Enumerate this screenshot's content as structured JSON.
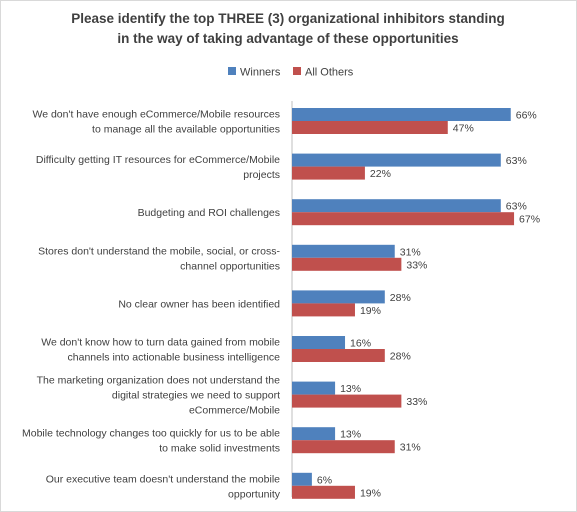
{
  "chart_data": {
    "type": "bar",
    "orientation": "horizontal",
    "title": "Please identify the top THREE (3) organizational inhibitors  standing in the way of taking advantage of these opportunities",
    "title_lines": [
      "Please identify the top THREE (3) organizational inhibitors  standing",
      "in the way of taking advantage of these opportunities"
    ],
    "legend_position": "top",
    "grid": false,
    "xlim": [
      0,
      70
    ],
    "categories": [
      [
        "We don't have enough eCommerce/Mobile resources",
        "to manage all the available opportunities"
      ],
      [
        "Difficulty getting IT resources for eCommerce/Mobile",
        "projects"
      ],
      [
        "Budgeting and ROI challenges"
      ],
      [
        "Stores don't understand the mobile, social, or cross-",
        "channel opportunities"
      ],
      [
        "No clear owner has been identified"
      ],
      [
        "We don't know how to turn data gained from mobile",
        "channels into actionable business intelligence"
      ],
      [
        "The marketing organization does not understand the",
        "digital strategies we need to support",
        "eCommerce/Mobile"
      ],
      [
        "Mobile technology changes too quickly for us to be able",
        "to make solid investments"
      ],
      [
        "Our executive team doesn't understand the mobile",
        "opportunity"
      ]
    ],
    "series": [
      {
        "name": "Winners",
        "color": "#4f81bd",
        "values": [
          66,
          63,
          63,
          31,
          28,
          16,
          13,
          13,
          6
        ],
        "labels": [
          "66%",
          "63%",
          "63%",
          "31%",
          "28%",
          "16%",
          "13%",
          "13%",
          "6%"
        ]
      },
      {
        "name": "All Others",
        "color": "#c0504d",
        "values": [
          47,
          22,
          67,
          33,
          19,
          28,
          33,
          31,
          19
        ],
        "labels": [
          "47%",
          "22%",
          "67%",
          "33%",
          "19%",
          "28%",
          "33%",
          "31%",
          "19%"
        ]
      }
    ]
  }
}
